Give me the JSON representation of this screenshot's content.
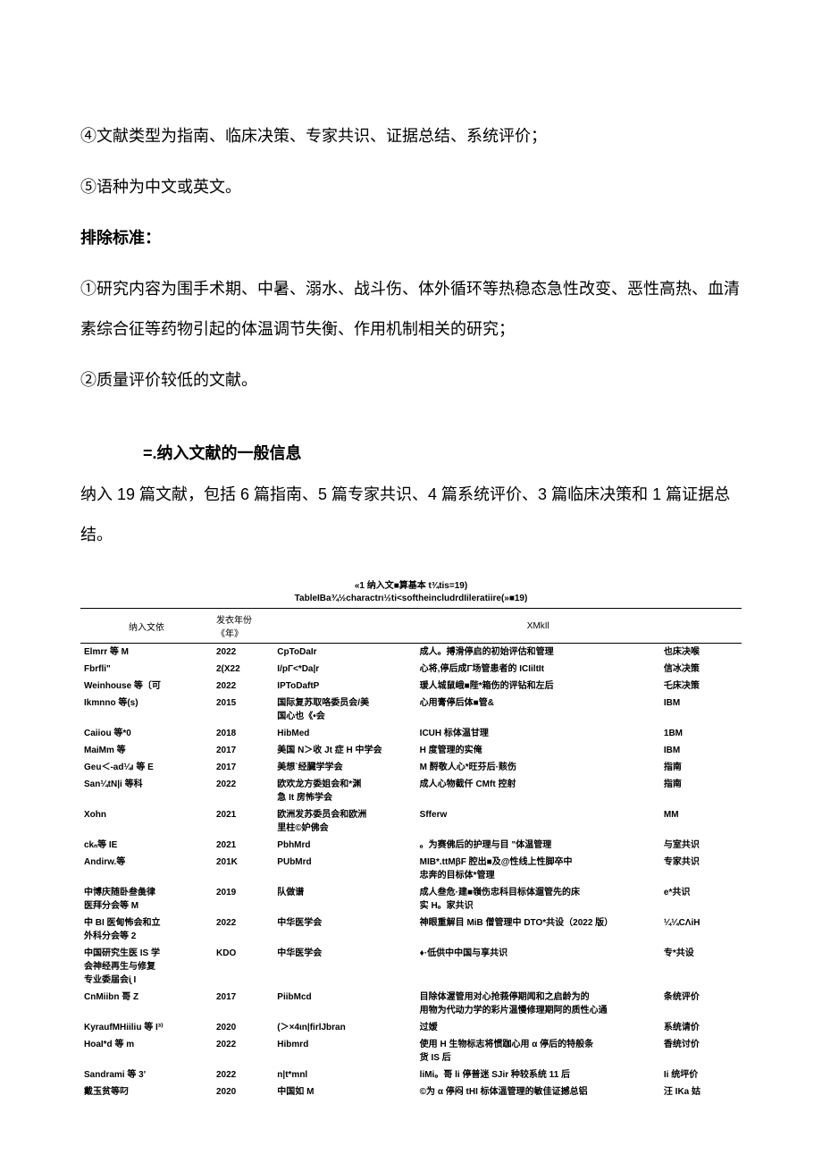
{
  "paragraphs": {
    "p1": "④文献类型为指南、临床决策、专家共识、证据总结、系统评价；",
    "p2": "⑤语种为中文或英文。",
    "p3_bold": "排除标准：",
    "p4": "①研究内容为围手术期、中暑、溺水、战斗伤、体外循环等热稳态急性改变、恶性高热、血清素综合征等药物引起的体温调节失衡、作用机制相关的研究；",
    "p5": "②质量评价较低的文献。",
    "section_title": "=.纳入文献的一般信息",
    "p6": "纳入 19 篇文献，包括 6 篇指南、5 篇专家共识、4 篇系统评价、3 篇临床决策和 1 篇证据总结。"
  },
  "table": {
    "caption": "«1 纳入文■算基本 t¾tis=19)",
    "subcaption": "TableIBa¾½charactrι½ti<softheincludrdIileratiire(»■19)",
    "headers": {
      "c1": "纳入文依",
      "c2": "发衣年份《年》",
      "c3": "",
      "c4": "XMkIl",
      "c5": ""
    },
    "rows": [
      {
        "c1": "Elmrr 等 M",
        "c2": "2022",
        "c3": "CpToDaIr",
        "c4": "成人。搏滑停启的初始评估和管理",
        "c5": "也床决喉"
      },
      {
        "c1": "Fbrfli\"",
        "c2": "2(X22",
        "c3": "I/pΓ<*Da|r",
        "c4": "心将,停后成Γ场管患者的 ICIiltIt",
        "c5": "信冰决策"
      },
      {
        "c1": "Weinhouse 等〔可",
        "c2": "2022",
        "c3": "IPToDaftP",
        "c4": "瑗人城鼠峨■陛*箱伤的评钻和左后",
        "c5": "乇床决策"
      },
      {
        "c1": "Ikmnno 等(s)",
        "c2": "2015",
        "c3": "国际复苏取咯委员会/美\n国心也《•会",
        "c4": "心用膏停后体■管&",
        "c5": "IBM"
      },
      {
        "c1": "Caiiou 等*0",
        "c2": "2018",
        "c3": "HibMed",
        "c4": "ICUH 标体温甘理",
        "c5": "1BM"
      },
      {
        "c1": "MaiMm 等",
        "c2": "2017",
        "c3": "美国 N＞收 Jt 症 H 中学会",
        "c4": "H 度管理的实俺",
        "c5": "IBM"
      },
      {
        "c1": "Geu＜-ad¼ι 等 E",
        "c2": "2017",
        "c3": "美想`经臓学学会",
        "c4": "M 酹敬人心*旺芬后·赅伤",
        "c5": "指南"
      },
      {
        "c1": "San¼tN|i 等科",
        "c2": "2022",
        "c3": "欧欢龙方委姐会和*渊\n急 It 房怖学会",
        "c4": "成人心物截仟 CMft 控射",
        "c5": "指南"
      },
      {
        "c1": "Xohn",
        "c2": "2021",
        "c3": "欧洲发苏委员会和欧洲\n里柱©妒佛会",
        "c4": "Sfferw",
        "c5": "MM"
      },
      {
        "c1": "ckₙ等 IE",
        "c2": "2021",
        "c3": "PbhMrd",
        "c4": "。为赛佛后的护理与目 \"体温管理",
        "c5": "与室共识"
      },
      {
        "c1": "Andirw.等",
        "c2": "201K",
        "c3": "PUbMrd",
        "c4": "MIB*.ttMβF 腔出■及@性线上性脚卒中\n忠奔的目标体*管理",
        "c5": "专家共识"
      },
      {
        "c1": "中博庆随卧叁彘律\n医拜分会等 M",
        "c2": "2019",
        "c3": "队做谱",
        "c4": "成人叁危·建■嶺伤忠科目标体遛管先的床\n实 H。家共识",
        "c5": "e*共识"
      },
      {
        "c1": "中 BI 医甸怖会和立\n外科分会等 2",
        "c2": "2022",
        "c3": "中华医学会",
        "c4": "神眼重解目 MiB 僧管理中 DTO*共设（2022 版）",
        "c5": "¼¼CΛiH"
      },
      {
        "c1": "中国研究生医 IS 学\n会神经再生与修复\n专业委届会ᶖ I",
        "c2": "KDO",
        "c3": "中华医学会",
        "c4": "♦·低供中中国与享共识",
        "c5": "专*共设"
      },
      {
        "c1": "CnMiibn 哥 Z",
        "c2": "2017",
        "c3": "PiibMcd",
        "c4": "目除体渥管用对心抢莪停期闻和之启龄为的\n用物为代动力学的彩片温慢修理期阿的质性心通",
        "c5": "条统评价"
      },
      {
        "c1": "KyraufMHiiliu 等 I³⁾",
        "c2": "2020",
        "c3": "(＞×4ιn|firlJbran",
        "c4": "过嫒",
        "c5": "系统请价"
      },
      {
        "c1": "HoaI*d 等 m",
        "c2": "2022",
        "c3": "Hibmrd",
        "c4": "使用 H 生物标志将惯跏心用 α 停后的特般条\n货 IS 后",
        "c5": "香统讨价"
      },
      {
        "c1": "Sandrami 等 3'",
        "c2": "2022",
        "c3": "n|t*mnl",
        "c4": "liMi。哥 li 停普迷 SJir 种较系统 11 后",
        "c5": "Ii 统坪价"
      },
      {
        "c1": "戴玉贫等叼",
        "c2": "2020",
        "c3": "中国如 M",
        "c4": "©为 α 停闷 tHI 标体溫管理的敏佳证撼总铝",
        "c5": "汪 IKa 姑"
      }
    ]
  },
  "colors": {
    "text": "#000000",
    "background": "#ffffff",
    "border": "#000000"
  }
}
